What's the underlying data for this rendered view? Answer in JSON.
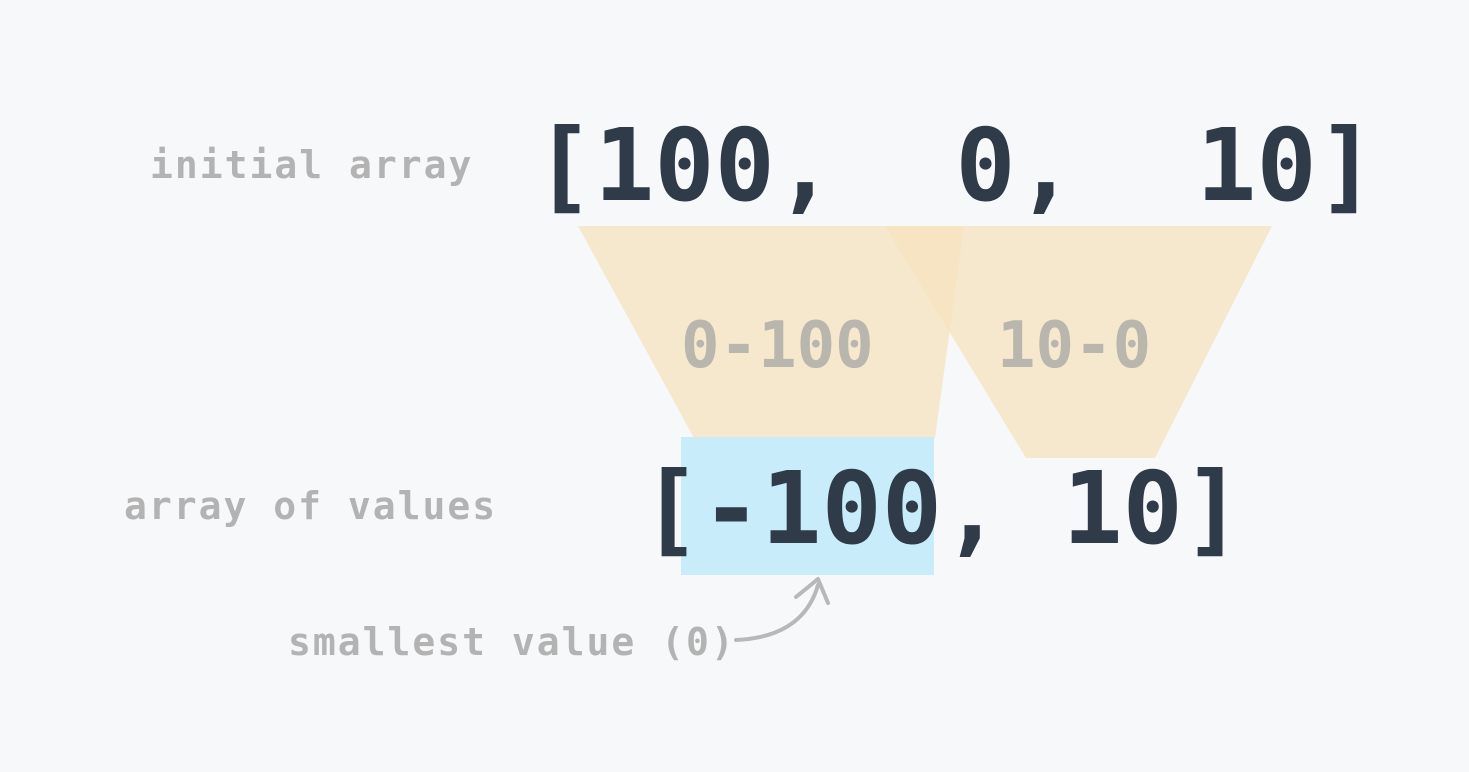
{
  "labels": {
    "initial_array": "initial array",
    "array_of_values": "array of values",
    "smallest_value": "smallest value (0)"
  },
  "initial_array": {
    "text": "[100,  0,  10]"
  },
  "differences": [
    {
      "label": "0-100"
    },
    {
      "label": "10-0"
    }
  ],
  "values_array": {
    "open": "[",
    "highlighted": "-100",
    "rest": ", 10]"
  },
  "colors": {
    "background": "#f7f8fa",
    "dark_text": "#2f3b48",
    "muted_text": "#b3b3b3",
    "trapezoid": "#f6e3bd",
    "highlight": "#c8ecfa",
    "arrow": "#b8b8b8"
  }
}
